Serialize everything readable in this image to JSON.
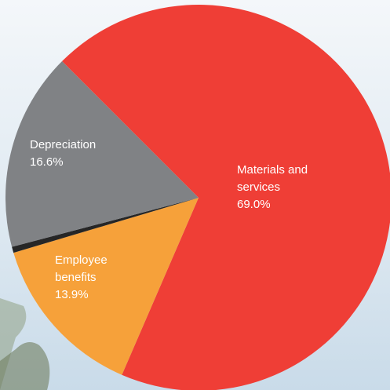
{
  "chart_data": {
    "type": "pie",
    "categories": [
      "Materials and services",
      "Employee benefits",
      null,
      "Depreciation"
    ],
    "values": [
      69.0,
      13.9,
      0.5,
      16.6
    ],
    "value_labels": [
      "69.0%",
      "13.9%",
      null,
      "16.6%"
    ],
    "colors": [
      "#ef3e36",
      "#f6a13a",
      "#262626",
      "#808285"
    ],
    "start_angle": -135
  }
}
